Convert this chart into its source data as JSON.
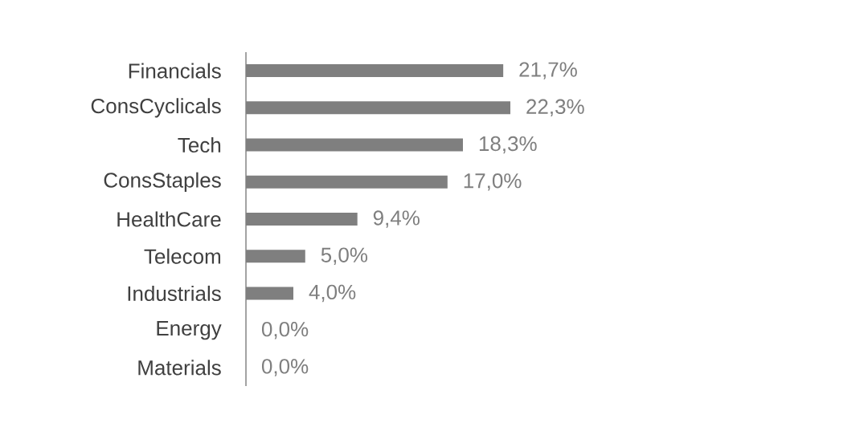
{
  "chart_data": {
    "type": "bar",
    "orientation": "horizontal",
    "categories": [
      "Financials",
      "ConsCyclicals",
      "Tech",
      "ConsStaples",
      "HealthCare",
      "Telecom",
      "Industrials",
      "Energy",
      "Materials"
    ],
    "values": [
      21.7,
      22.3,
      18.3,
      17.0,
      9.4,
      5.0,
      4.0,
      0.0,
      0.0
    ],
    "value_labels": [
      "21,7%",
      "22,3%",
      "18,3%",
      "17,0%",
      "9,4%",
      "5,0%",
      "4,0%",
      "0,0%",
      "0,0%"
    ],
    "color": "#7f7f7f"
  }
}
